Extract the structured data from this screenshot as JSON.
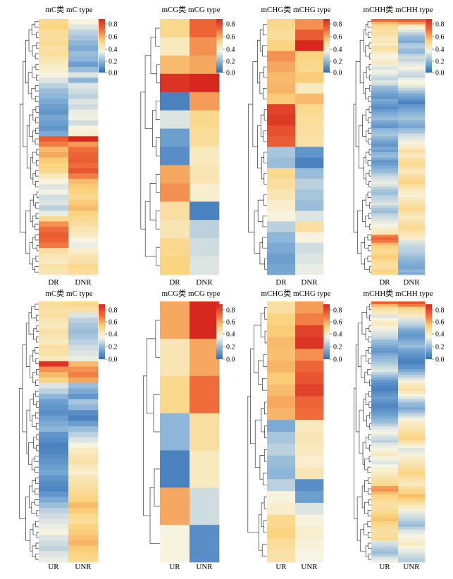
{
  "figure": {
    "rows": [
      {
        "row_label_left": "DR",
        "row_label_right": "DNR"
      },
      {
        "row_label_left": "UR",
        "row_label_right": "UNR"
      }
    ]
  },
  "legend": {
    "ticks": [
      "0.8",
      "0.6",
      "0.4",
      "0.2",
      "0.0"
    ],
    "tick_values": [
      0.8,
      0.6,
      0.4,
      0.2,
      0.0
    ],
    "colormap": [
      "#2f6eb5",
      "#86b2d8",
      "#f7f5e4",
      "#fbd27c",
      "#f06c3a",
      "#d7271f"
    ],
    "range": [
      0,
      0.85
    ]
  },
  "chart_data": [
    {
      "type": "heatmap",
      "title": "mC类 mC type",
      "columns": [
        "DR",
        "DNR"
      ],
      "rows_count": 48,
      "values": {
        "DR": [
          0.48,
          0.5,
          0.46,
          0.45,
          0.47,
          0.44,
          0.46,
          0.42,
          0.4,
          0.38,
          0.35,
          0.3,
          0.25,
          0.2,
          0.18,
          0.15,
          0.12,
          0.1,
          0.14,
          0.12,
          0.1,
          0.15,
          0.72,
          0.65,
          0.55,
          0.58,
          0.52,
          0.5,
          0.48,
          0.4,
          0.35,
          0.3,
          0.33,
          0.28,
          0.3,
          0.25,
          0.32,
          0.48,
          0.62,
          0.68,
          0.72,
          0.7,
          0.66,
          0.45,
          0.42,
          0.4,
          0.44,
          0.42
        ],
        "DNR": [
          0.35,
          0.3,
          0.25,
          0.22,
          0.18,
          0.15,
          0.2,
          0.18,
          0.12,
          0.2,
          0.3,
          0.18,
          0.3,
          0.28,
          0.25,
          0.3,
          0.28,
          0.32,
          0.33,
          0.28,
          0.35,
          0.38,
          0.85,
          0.6,
          0.68,
          0.7,
          0.72,
          0.68,
          0.74,
          0.65,
          0.55,
          0.52,
          0.5,
          0.48,
          0.52,
          0.55,
          0.5,
          0.48,
          0.45,
          0.42,
          0.4,
          0.35,
          0.32,
          0.38,
          0.42,
          0.44,
          0.48,
          0.46
        ]
      }
    },
    {
      "type": "heatmap",
      "title": "mCG类 mCG type",
      "columns": [
        "DR",
        "DNR"
      ],
      "rows_count": 14,
      "values": {
        "DR": [
          0.48,
          0.4,
          0.55,
          0.82,
          0.05,
          0.3,
          0.12,
          0.08,
          0.58,
          0.62,
          0.45,
          0.42,
          0.48,
          0.5
        ],
        "DNR": [
          0.7,
          0.62,
          0.58,
          0.88,
          0.6,
          0.48,
          0.46,
          0.4,
          0.42,
          0.38,
          0.05,
          0.25,
          0.28,
          0.3
        ]
      }
    },
    {
      "type": "heatmap",
      "title": "mCHG类 mCHG type",
      "columns": [
        "DR",
        "DNR"
      ],
      "rows_count": 24,
      "values": {
        "DR": [
          0.48,
          0.46,
          0.5,
          0.62,
          0.58,
          0.55,
          0.56,
          0.52,
          0.78,
          0.8,
          0.75,
          0.72,
          0.22,
          0.2,
          0.48,
          0.45,
          0.42,
          0.38,
          0.35,
          0.25,
          0.18,
          0.15,
          0.12,
          0.14
        ],
        "DNR": [
          0.62,
          0.72,
          0.85,
          0.5,
          0.48,
          0.52,
          0.4,
          0.55,
          0.48,
          0.46,
          0.45,
          0.44,
          0.1,
          0.05,
          0.2,
          0.25,
          0.22,
          0.2,
          0.3,
          0.45,
          0.35,
          0.28,
          0.3,
          0.32
        ]
      }
    },
    {
      "type": "heatmap",
      "title": "mCHH类 mCHH type",
      "columns": [
        "DR",
        "DNR"
      ],
      "rows_count": 96,
      "values": {
        "DR": [
          0.7,
          0.55,
          0.48,
          0.46,
          0.44,
          0.45,
          0.42,
          0.4,
          0.42,
          0.38,
          0.45,
          0.44,
          0.4,
          0.36,
          0.35,
          0.38,
          0.4,
          0.32,
          0.3,
          0.33,
          0.32,
          0.28,
          0.26,
          0.3,
          0.28,
          0.2,
          0.18,
          0.15,
          0.12,
          0.1,
          0.15,
          0.12,
          0.1,
          0.08,
          0.12,
          0.15,
          0.18,
          0.2,
          0.15,
          0.12,
          0.1,
          0.18,
          0.2,
          0.22,
          0.18,
          0.15,
          0.12,
          0.1,
          0.15,
          0.12,
          0.18,
          0.2,
          0.15,
          0.1,
          0.12,
          0.15,
          0.18,
          0.2,
          0.25,
          0.28,
          0.3,
          0.32,
          0.3,
          0.25,
          0.22,
          0.2,
          0.24,
          0.26,
          0.28,
          0.3,
          0.25,
          0.22,
          0.2,
          0.26,
          0.28,
          0.3,
          0.32,
          0.34,
          0.38,
          0.4,
          0.42,
          0.65,
          0.7,
          0.66,
          0.55,
          0.5,
          0.48,
          0.46,
          0.5,
          0.52,
          0.48,
          0.46,
          0.44,
          0.45,
          0.5,
          0.48
        ],
        "DNR": [
          0.72,
          0.6,
          0.4,
          0.35,
          0.3,
          0.25,
          0.2,
          0.18,
          0.15,
          0.22,
          0.24,
          0.2,
          0.18,
          0.25,
          0.28,
          0.26,
          0.3,
          0.32,
          0.35,
          0.3,
          0.28,
          0.26,
          0.32,
          0.34,
          0.36,
          0.3,
          0.25,
          0.2,
          0.15,
          0.12,
          0.08,
          0.05,
          0.1,
          0.12,
          0.15,
          0.18,
          0.2,
          0.22,
          0.18,
          0.16,
          0.14,
          0.2,
          0.22,
          0.28,
          0.3,
          0.32,
          0.35,
          0.38,
          0.4,
          0.45,
          0.42,
          0.4,
          0.44,
          0.46,
          0.48,
          0.45,
          0.42,
          0.4,
          0.44,
          0.46,
          0.48,
          0.5,
          0.45,
          0.42,
          0.4,
          0.38,
          0.36,
          0.4,
          0.42,
          0.44,
          0.46,
          0.48,
          0.45,
          0.42,
          0.4,
          0.42,
          0.44,
          0.46,
          0.48,
          0.44,
          0.42,
          0.4,
          0.38,
          0.3,
          0.28,
          0.26,
          0.25,
          0.24,
          0.22,
          0.2,
          0.18,
          0.16,
          0.15,
          0.14,
          0.18,
          0.16
        ]
      }
    },
    {
      "type": "heatmap",
      "title": "mC类 mC type",
      "columns": [
        "UR",
        "UNR"
      ],
      "rows_count": 48,
      "values": {
        "UR": [
          0.46,
          0.44,
          0.45,
          0.42,
          0.4,
          0.44,
          0.42,
          0.4,
          0.45,
          0.44,
          0.4,
          0.82,
          0.62,
          0.55,
          0.5,
          0.3,
          0.25,
          0.18,
          0.12,
          0.1,
          0.08,
          0.12,
          0.15,
          0.18,
          0.1,
          0.08,
          0.05,
          0.06,
          0.08,
          0.1,
          0.12,
          0.14,
          0.1,
          0.08,
          0.06,
          0.1,
          0.15,
          0.2,
          0.25,
          0.28,
          0.3,
          0.32,
          0.35,
          0.3,
          0.28,
          0.26,
          0.3,
          0.32
        ],
        "UNR": [
          0.48,
          0.44,
          0.3,
          0.25,
          0.22,
          0.2,
          0.22,
          0.25,
          0.28,
          0.3,
          0.32,
          0.55,
          0.62,
          0.65,
          0.58,
          0.2,
          0.15,
          0.1,
          0.22,
          0.18,
          0.08,
          0.05,
          0.12,
          0.2,
          0.25,
          0.3,
          0.35,
          0.4,
          0.42,
          0.44,
          0.4,
          0.38,
          0.42,
          0.44,
          0.46,
          0.48,
          0.5,
          0.55,
          0.52,
          0.48,
          0.46,
          0.5,
          0.52,
          0.54,
          0.56,
          0.52,
          0.5,
          0.48
        ]
      }
    },
    {
      "type": "heatmap",
      "title": "mCG类 mCG type",
      "columns": [
        "UR",
        "UNR"
      ],
      "rows_count": 7,
      "values": {
        "UR": [
          0.58,
          0.42,
          0.48,
          0.18,
          0.05,
          0.58,
          0.35
        ],
        "UNR": [
          0.88,
          0.58,
          0.68,
          0.45,
          0.4,
          0.28,
          0.08
        ]
      }
    },
    {
      "type": "heatmap",
      "title": "mCHG类 mCHG type",
      "columns": [
        "UR",
        "UNR"
      ],
      "rows_count": 22,
      "values": {
        "UR": [
          0.45,
          0.5,
          0.52,
          0.55,
          0.54,
          0.56,
          0.52,
          0.55,
          0.58,
          0.56,
          0.15,
          0.22,
          0.25,
          0.2,
          0.18,
          0.25,
          0.35,
          0.38,
          0.48,
          0.5,
          0.46,
          0.44
        ],
        "UNR": [
          0.6,
          0.65,
          0.78,
          0.82,
          0.62,
          0.7,
          0.74,
          0.78,
          0.7,
          0.68,
          0.4,
          0.42,
          0.4,
          0.38,
          0.42,
          0.08,
          0.12,
          0.3,
          0.35,
          0.38,
          0.36,
          0.34
        ]
      }
    },
    {
      "type": "heatmap",
      "title": "mCHH类 mCHH type",
      "columns": [
        "UR",
        "UNR"
      ],
      "rows_count": 96,
      "values": {
        "UR": [
          0.72,
          0.55,
          0.46,
          0.42,
          0.4,
          0.3,
          0.35,
          0.38,
          0.4,
          0.36,
          0.32,
          0.3,
          0.28,
          0.26,
          0.2,
          0.18,
          0.15,
          0.12,
          0.1,
          0.15,
          0.18,
          0.2,
          0.22,
          0.25,
          0.28,
          0.3,
          0.25,
          0.2,
          0.15,
          0.1,
          0.08,
          0.06,
          0.05,
          0.08,
          0.1,
          0.12,
          0.1,
          0.08,
          0.06,
          0.08,
          0.1,
          0.12,
          0.15,
          0.18,
          0.2,
          0.25,
          0.3,
          0.32,
          0.35,
          0.3,
          0.28,
          0.25,
          0.3,
          0.32,
          0.35,
          0.38,
          0.4,
          0.35,
          0.32,
          0.3,
          0.34,
          0.36,
          0.38,
          0.4,
          0.42,
          0.45,
          0.46,
          0.48,
          0.6,
          0.62,
          0.55,
          0.5,
          0.48,
          0.46,
          0.44,
          0.45,
          0.46,
          0.48,
          0.5,
          0.52,
          0.54,
          0.5,
          0.48,
          0.46,
          0.44,
          0.45,
          0.46,
          0.48,
          0.3,
          0.28,
          0.25,
          0.22,
          0.2,
          0.24,
          0.3,
          0.32
        ],
        "UNR": [
          0.75,
          0.65,
          0.5,
          0.45,
          0.42,
          0.4,
          0.3,
          0.28,
          0.25,
          0.2,
          0.15,
          0.12,
          0.1,
          0.12,
          0.15,
          0.18,
          0.2,
          0.15,
          0.12,
          0.1,
          0.08,
          0.06,
          0.05,
          0.08,
          0.1,
          0.15,
          0.2,
          0.25,
          0.3,
          0.35,
          0.4,
          0.42,
          0.45,
          0.4,
          0.35,
          0.3,
          0.25,
          0.2,
          0.18,
          0.15,
          0.2,
          0.25,
          0.3,
          0.35,
          0.38,
          0.4,
          0.42,
          0.44,
          0.46,
          0.48,
          0.5,
          0.45,
          0.4,
          0.35,
          0.3,
          0.32,
          0.35,
          0.38,
          0.4,
          0.42,
          0.44,
          0.46,
          0.48,
          0.5,
          0.46,
          0.44,
          0.42,
          0.4,
          0.45,
          0.48,
          0.5,
          0.55,
          0.52,
          0.48,
          0.44,
          0.4,
          0.36,
          0.32,
          0.3,
          0.28,
          0.25,
          0.22,
          0.2,
          0.25,
          0.3,
          0.32,
          0.34,
          0.36,
          0.38,
          0.4,
          0.35,
          0.32,
          0.3,
          0.28,
          0.26,
          0.24
        ]
      }
    }
  ]
}
